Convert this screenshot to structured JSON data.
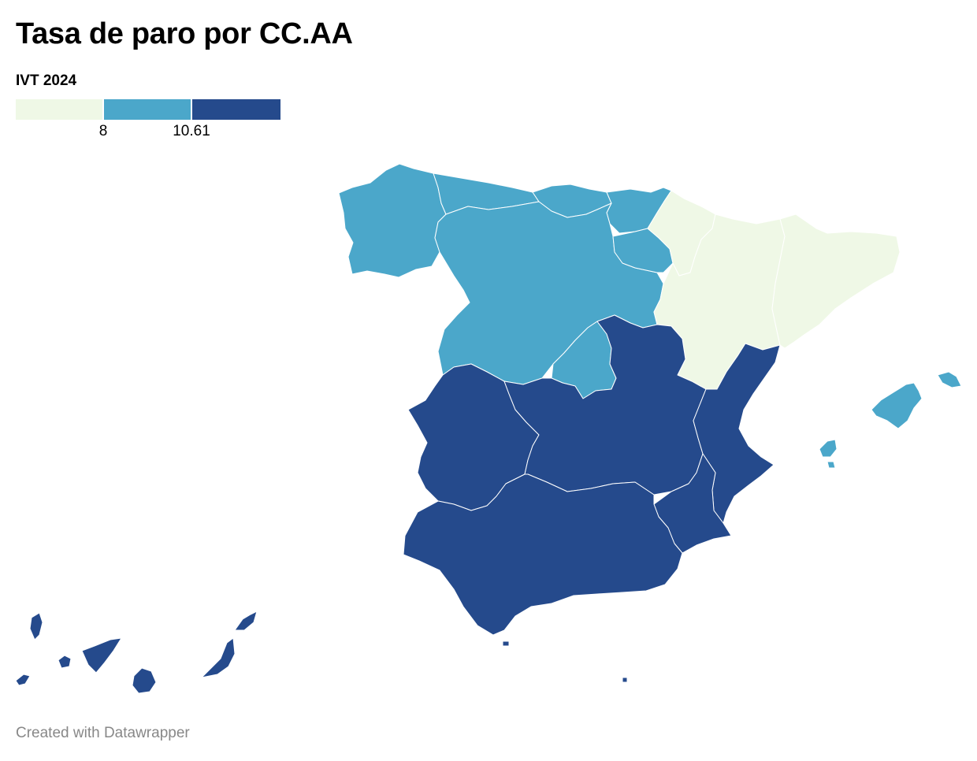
{
  "title": "Tasa de paro por CC.AA",
  "legend": {
    "title": "IVT 2024",
    "ticks": [
      "8",
      "10.61"
    ],
    "thresholds": [
      8,
      10.61
    ],
    "colors": [
      "#eff8e6",
      "#4ba7ca",
      "#254a8c"
    ]
  },
  "map_data": {
    "type": "choropleth",
    "bins": [
      {
        "class": "low",
        "range": "< 8",
        "color": "#eff8e6"
      },
      {
        "class": "mid",
        "range": "8 – 10.61",
        "color": "#4ba7ca"
      },
      {
        "class": "high",
        "range": "> 10.61",
        "color": "#254a8c"
      }
    ],
    "regions": [
      {
        "name": "Galicia",
        "class": "mid"
      },
      {
        "name": "Asturias",
        "class": "mid"
      },
      {
        "name": "Cantabria",
        "class": "mid"
      },
      {
        "name": "País Vasco",
        "class": "mid"
      },
      {
        "name": "Castilla y León",
        "class": "mid"
      },
      {
        "name": "La Rioja",
        "class": "mid"
      },
      {
        "name": "Comunidad de Madrid",
        "class": "mid"
      },
      {
        "name": "Illes Balears",
        "class": "mid"
      },
      {
        "name": "Navarra",
        "class": "low"
      },
      {
        "name": "Aragón",
        "class": "low"
      },
      {
        "name": "Cataluña",
        "class": "low"
      },
      {
        "name": "Extremadura",
        "class": "high"
      },
      {
        "name": "Castilla-La Mancha",
        "class": "high"
      },
      {
        "name": "Comunitat Valenciana",
        "class": "high"
      },
      {
        "name": "Región de Murcia",
        "class": "high"
      },
      {
        "name": "Andalucía",
        "class": "high"
      },
      {
        "name": "Canarias",
        "class": "high"
      },
      {
        "name": "Ceuta",
        "class": "high"
      },
      {
        "name": "Melilla",
        "class": "high"
      }
    ]
  },
  "footer": "Created with Datawrapper"
}
